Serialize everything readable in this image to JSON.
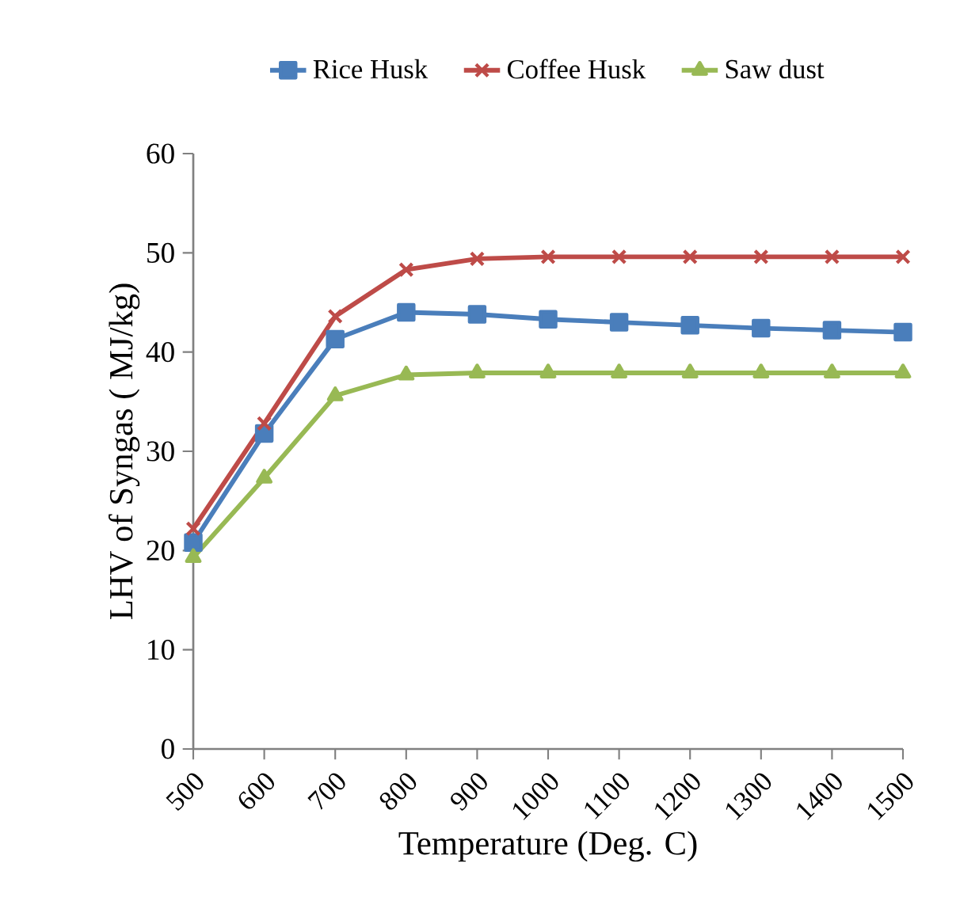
{
  "chart_data": {
    "type": "line",
    "categories": [
      "500",
      "600",
      "700",
      "800",
      "900",
      "1000",
      "1100",
      "1200",
      "1300",
      "1400",
      "1500"
    ],
    "series": [
      {
        "name": "Rice Husk",
        "color": "#4a7ebb",
        "marker": "square",
        "values": [
          20.8,
          31.8,
          41.3,
          44.0,
          43.8,
          43.3,
          43.0,
          42.7,
          42.4,
          42.2,
          42.0
        ]
      },
      {
        "name": "Coffee Husk",
        "color": "#be4b48",
        "marker": "cross",
        "values": [
          22.2,
          32.8,
          43.6,
          48.3,
          49.4,
          49.6,
          49.6,
          49.6,
          49.6,
          49.6,
          49.6
        ]
      },
      {
        "name": "Saw dust",
        "color": "#98b954",
        "marker": "triangle",
        "values": [
          19.3,
          27.3,
          35.6,
          37.7,
          37.9,
          37.9,
          37.9,
          37.9,
          37.9,
          37.9,
          37.9
        ]
      }
    ],
    "xlabel": "Temperature (Deg. C)",
    "ylabel": "LHV of Syngas ( MJ/kg)",
    "ylim": [
      0,
      60
    ],
    "yticks": [
      0,
      10,
      20,
      30,
      40,
      50,
      60
    ],
    "grid": false,
    "legend": "top",
    "line_style": "solid"
  }
}
